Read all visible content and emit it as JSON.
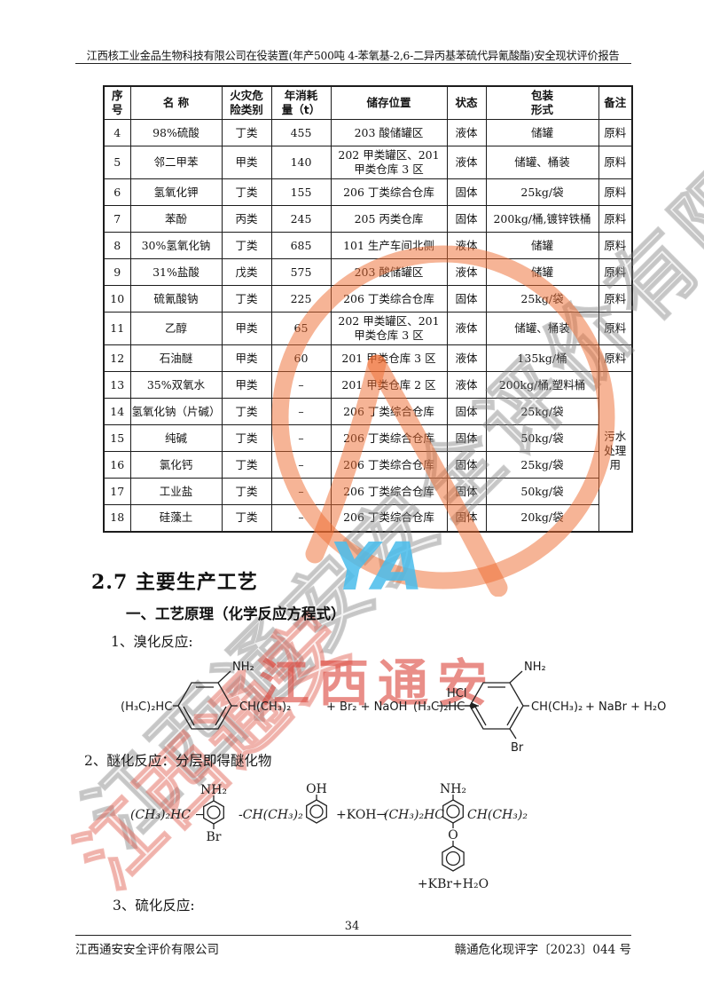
{
  "page": {
    "header_title": "江西核工业金品生物科技有限公司在役装置(年产500吨 4-苯氧基-2,6-二异丙基苯硫代异氰酸酯)安全现状评价报告",
    "page_number": "34",
    "footer_left": "江西通安安全评价有限公司",
    "footer_right": "赣通危化现评字〔2023〕044 号"
  },
  "table": {
    "headers": [
      "序\n号",
      "名  称",
      "火灾危\n险类别",
      "年消耗\n量（t）",
      "储存位置",
      "状态",
      "包装\n形式",
      "备注"
    ],
    "merged_note": "污水处理用",
    "rows": [
      {
        "no": "4",
        "name": "98%硫酸",
        "class": "丁类",
        "amount": "455",
        "location": "203 酸储罐区",
        "state": "液体",
        "package": "储罐",
        "note": "原料"
      },
      {
        "no": "5",
        "name": "邻二甲苯",
        "class": "甲类",
        "amount": "140",
        "location": "202 甲类罐区、201 甲类仓库 3 区",
        "state": "液体",
        "package": "储罐、桶装",
        "note": "原料"
      },
      {
        "no": "6",
        "name": "氢氧化钾",
        "class": "丁类",
        "amount": "155",
        "location": "206 丁类综合仓库",
        "state": "固体",
        "package": "25kg/袋",
        "note": "原料"
      },
      {
        "no": "7",
        "name": "苯酚",
        "class": "丙类",
        "amount": "245",
        "location": "205 丙类仓库",
        "state": "固体",
        "package": "200kg/桶,镀锌铁桶",
        "note": "原料"
      },
      {
        "no": "8",
        "name": "30%氢氧化钠",
        "class": "丁类",
        "amount": "685",
        "location": "101 生产车间北侧",
        "state": "液体",
        "package": "储罐",
        "note": "原料"
      },
      {
        "no": "9",
        "name": "31%盐酸",
        "class": "戊类",
        "amount": "575",
        "location": "203 酸储罐区",
        "state": "液体",
        "package": "储罐",
        "note": "原料"
      },
      {
        "no": "10",
        "name": "硫氰酸钠",
        "class": "丁类",
        "amount": "225",
        "location": "206 丁类综合仓库",
        "state": "固体",
        "package": "25kg/袋",
        "note": "原料"
      },
      {
        "no": "11",
        "name": "乙醇",
        "class": "甲类",
        "amount": "65",
        "location": "202 甲类罐区、201 甲类仓库 3 区",
        "state": "液体",
        "package": "储罐、桶装",
        "note": "原料"
      },
      {
        "no": "12",
        "name": "石油醚",
        "class": "甲类",
        "amount": "60",
        "location": "201 甲类仓库 3 区",
        "state": "液体",
        "package": "135kg/桶",
        "note": "原料"
      },
      {
        "no": "13",
        "name": "35%双氧水",
        "class": "甲类",
        "amount": "–",
        "location": "201 甲类仓库 2 区",
        "state": "液体",
        "package": "200kg/桶,塑料桶",
        "note": "污水处理用",
        "note_rowspan": 6
      },
      {
        "no": "14",
        "name": "氢氧化钠（片碱）",
        "class": "丁类",
        "amount": "–",
        "location": "206 丁类综合仓库",
        "state": "固体",
        "package": "25kg/袋"
      },
      {
        "no": "15",
        "name": "纯碱",
        "class": "丁类",
        "amount": "–",
        "location": "206 丁类综合仓库",
        "state": "固体",
        "package": "50kg/袋"
      },
      {
        "no": "16",
        "name": "氯化钙",
        "class": "丁类",
        "amount": "–",
        "location": "206 丁类综合仓库",
        "state": "固体",
        "package": "25kg/袋"
      },
      {
        "no": "17",
        "name": "工业盐",
        "class": "丁类",
        "amount": "–",
        "location": "206 丁类综合仓库",
        "state": "固体",
        "package": "50kg/袋"
      },
      {
        "no": "18",
        "name": "硅藻土",
        "class": "丁类",
        "amount": "–",
        "location": "206 丁类综合仓库",
        "state": "固体",
        "package": "20kg/袋"
      }
    ]
  },
  "sections": {
    "section_heading": "2.7 主要生产工艺",
    "sub_heading": "一、工艺原理（化学反应方程式）",
    "step1": "1、溴化反应:",
    "step2": "2、醚化反应：分层即得醚化物",
    "step3": "3、硫化反应:"
  },
  "reaction1": {
    "reactant_left": "(H₃C)₂HC",
    "amine": "NH₂",
    "reactant_right": "CH(CH₃)₂",
    "plus_reagents": "+  Br₂  + NaOH",
    "catalyst": "HCl",
    "product_left": "(H₃C)₂HC",
    "product_amine": "NH₂",
    "product_right": "CH(CH₃)₂",
    "bromo": "Br",
    "products_tail": "+  NaBr  + H₂O"
  },
  "reaction2": {
    "left_chain": "(CH₃)₂HC −",
    "amine": "NH₂",
    "bromo": "Br",
    "mid_chain": "-CH(CH₃)₂",
    "hydroxyl": "OH",
    "reagent": "+KOH→",
    "prod_left": "(CH₃)₂HC",
    "prod_amine": "NH₂",
    "prod_right": "CH(CH₃)₂",
    "ether_o": "O",
    "byproducts": "+KBr+H₂O"
  },
  "watermarks": {
    "diagonal_text": "江西通安安全评价有限公司",
    "diagonal_red_text": "江西通安",
    "red_banner": "江西通安",
    "stamp_letters": "YA",
    "stamp_color": "#ed6a2e",
    "stamp_blue": "#49bdec",
    "banner_red": "#db4238"
  }
}
